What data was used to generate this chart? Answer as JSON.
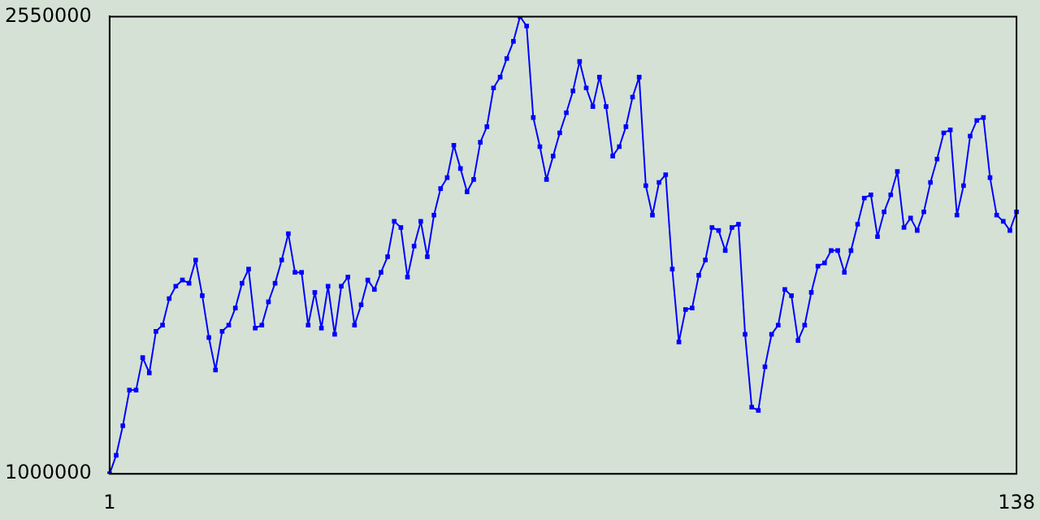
{
  "chart_data": {
    "type": "line",
    "marker": "square",
    "grid": false,
    "legend": false,
    "categories": [
      "1",
      null,
      null,
      null,
      null,
      null,
      null,
      null,
      null,
      null,
      null,
      null,
      null,
      null,
      null,
      null,
      null,
      null,
      null,
      null,
      null,
      null,
      null,
      null,
      null,
      null,
      null,
      null,
      null,
      null,
      null,
      null,
      null,
      null,
      null,
      null,
      null,
      null,
      null,
      null,
      null,
      null,
      null,
      null,
      null,
      null,
      null,
      null,
      null,
      null,
      null,
      null,
      null,
      null,
      null,
      null,
      null,
      null,
      null,
      null,
      null,
      null,
      null,
      null,
      null,
      null,
      null,
      null,
      null,
      null,
      null,
      null,
      null,
      null,
      null,
      null,
      null,
      null,
      null,
      null,
      null,
      null,
      null,
      null,
      null,
      null,
      null,
      null,
      null,
      null,
      null,
      null,
      null,
      null,
      null,
      null,
      null,
      null,
      null,
      null,
      null,
      null,
      null,
      null,
      null,
      null,
      null,
      null,
      null,
      null,
      null,
      null,
      null,
      null,
      null,
      null,
      null,
      null,
      null,
      null,
      null,
      null,
      null,
      null,
      null,
      null,
      null,
      null,
      null,
      null,
      null,
      null,
      null,
      null,
      null,
      null,
      null,
      "138"
    ],
    "ylim": [
      1000000,
      2550000
    ],
    "yticks": [
      1000000,
      2550000
    ],
    "series": [
      {
        "color": "#0000ff",
        "values": [
          1000000,
          1063000,
          1163000,
          1284000,
          1284000,
          1394000,
          1342000,
          1483000,
          1504000,
          1594000,
          1636000,
          1657000,
          1646000,
          1725000,
          1604000,
          1462000,
          1352000,
          1483000,
          1504000,
          1562000,
          1646000,
          1694000,
          1494000,
          1504000,
          1583000,
          1646000,
          1725000,
          1814000,
          1683000,
          1683000,
          1504000,
          1615000,
          1494000,
          1636000,
          1473000,
          1636000,
          1667000,
          1504000,
          1573000,
          1657000,
          1625000,
          1683000,
          1736000,
          1856000,
          1835000,
          1667000,
          1772000,
          1856000,
          1736000,
          1877000,
          1967000,
          2004000,
          2114000,
          2035000,
          1956000,
          1998000,
          2124000,
          2177000,
          2308000,
          2345000,
          2408000,
          2466000,
          2550000,
          2518000,
          2208000,
          2109000,
          1998000,
          2077000,
          2156000,
          2224000,
          2298000,
          2398000,
          2308000,
          2245000,
          2345000,
          2245000,
          2077000,
          2109000,
          2177000,
          2277000,
          2345000,
          1977000,
          1877000,
          1988000,
          2014000,
          1694000,
          1447000,
          1557000,
          1562000,
          1673000,
          1725000,
          1835000,
          1825000,
          1757000,
          1835000,
          1846000,
          1473000,
          1226000,
          1215000,
          1363000,
          1473000,
          1504000,
          1625000,
          1604000,
          1452000,
          1504000,
          1615000,
          1704000,
          1715000,
          1757000,
          1757000,
          1683000,
          1757000,
          1846000,
          1935000,
          1946000,
          1804000,
          1888000,
          1946000,
          2025000,
          1835000,
          1867000,
          1825000,
          1888000,
          1988000,
          2067000,
          2156000,
          2166000,
          1877000,
          1977000,
          2145000,
          2198000,
          2208000,
          2004000,
          1877000,
          1856000,
          1825000,
          1888000
        ]
      }
    ]
  }
}
